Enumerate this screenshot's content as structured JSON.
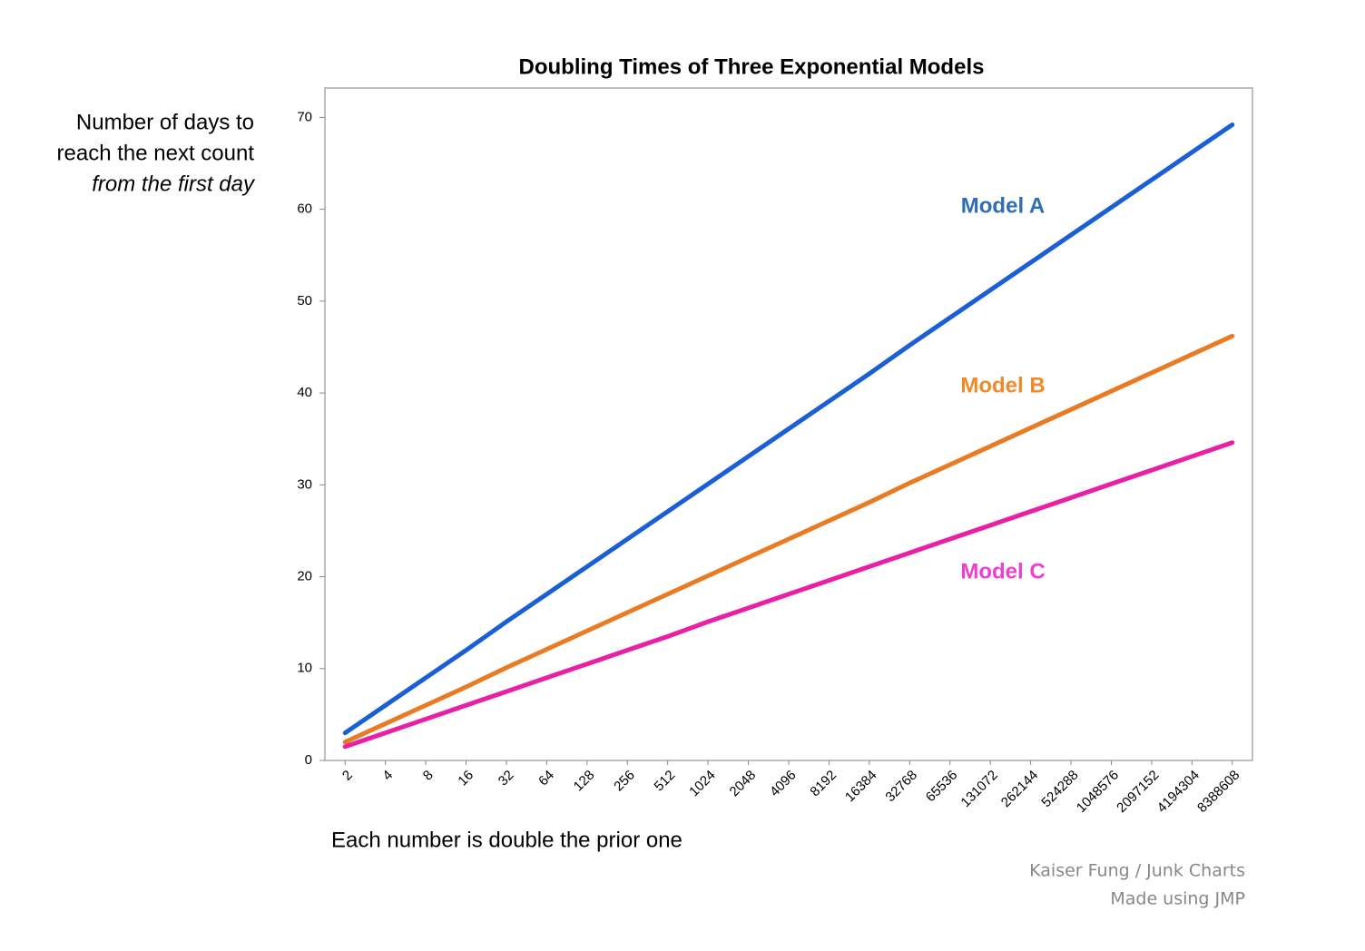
{
  "chart_data": {
    "type": "line",
    "title": "Doubling Times of Three Exponential Models",
    "y_label": [
      "Number of days to",
      "reach the next count",
      "from the first day"
    ],
    "x_label": "Each number is double the prior one",
    "credits": [
      "Kaiser Fung / Junk Charts",
      "Made using JMP"
    ],
    "categories": [
      "2",
      "4",
      "8",
      "16",
      "32",
      "64",
      "128",
      "256",
      "512",
      "1024",
      "2048",
      "4096",
      "8192",
      "16384",
      "32768",
      "65536",
      "131072",
      "262144",
      "524288",
      "1048576",
      "2097152",
      "4194304",
      "8388608"
    ],
    "series": [
      {
        "name": "Model A",
        "color": "#1a5fd6",
        "label_color": "#2f6db5",
        "values": [
          3.0,
          6.0,
          9.0,
          12.0,
          15.1,
          18.1,
          21.1,
          24.1,
          27.1,
          30.1,
          33.1,
          36.1,
          39.1,
          42.1,
          45.2,
          48.2,
          51.2,
          54.2,
          57.2,
          60.2,
          63.2,
          66.2,
          69.2
        ]
      },
      {
        "name": "Model B",
        "color": "#e87c24",
        "label_color": "#f08a2a",
        "values": [
          2.0,
          4.0,
          6.0,
          8.0,
          10.1,
          12.1,
          14.1,
          16.1,
          18.1,
          20.1,
          22.1,
          24.1,
          26.1,
          28.1,
          30.2,
          32.2,
          34.2,
          36.2,
          38.2,
          40.2,
          42.2,
          44.2,
          46.2
        ]
      },
      {
        "name": "Model C",
        "color": "#e91fa6",
        "label_color": "#f03fd0",
        "values": [
          1.5,
          3.0,
          4.5,
          6.0,
          7.5,
          9.0,
          10.5,
          12.0,
          13.5,
          15.1,
          16.6,
          18.1,
          19.6,
          21.1,
          22.6,
          24.1,
          25.6,
          27.1,
          28.6,
          30.1,
          31.6,
          33.1,
          34.6
        ]
      }
    ],
    "ylim": [
      0,
      73.2
    ],
    "yticks": [
      0,
      10,
      20,
      30,
      40,
      50,
      60,
      70
    ],
    "grid": false
  }
}
